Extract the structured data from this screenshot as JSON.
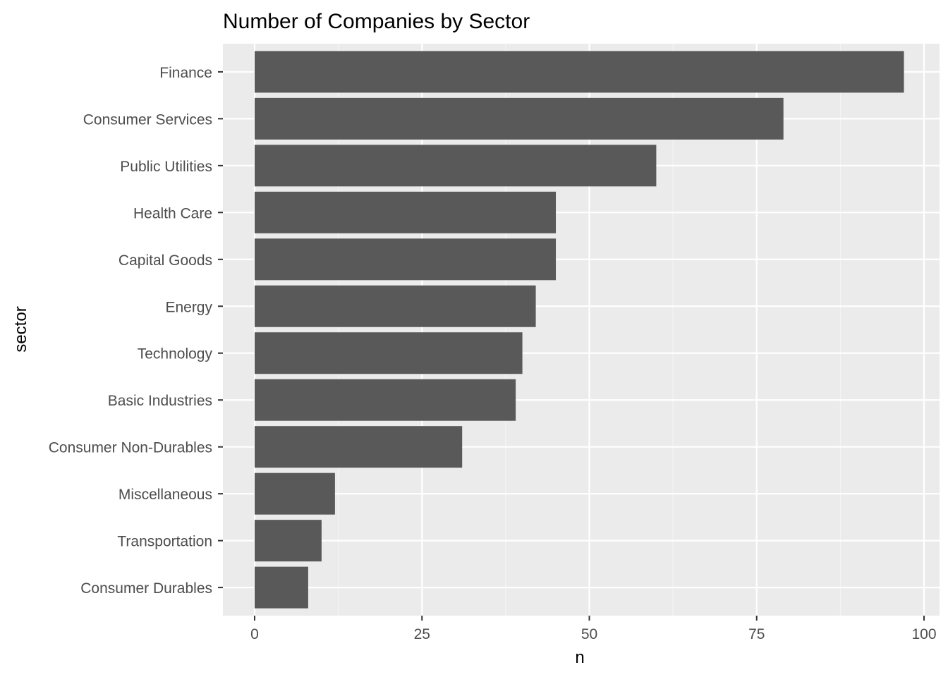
{
  "chart_data": {
    "type": "bar",
    "orientation": "horizontal",
    "title": "Number of Companies by Sector",
    "xlabel": "n",
    "ylabel": "sector",
    "categories": [
      "Finance",
      "Consumer Services",
      "Public Utilities",
      "Health Care",
      "Capital Goods",
      "Energy",
      "Technology",
      "Basic Industries",
      "Consumer Non-Durables",
      "Miscellaneous",
      "Transportation",
      "Consumer Durables"
    ],
    "values": [
      97,
      79,
      60,
      45,
      45,
      42,
      40,
      39,
      31,
      12,
      10,
      8
    ],
    "xlim": [
      0,
      100
    ],
    "xticks": [
      0,
      25,
      50,
      75,
      100
    ],
    "grid": true,
    "colors": {
      "bar": "#595959",
      "panel_background": "#ebebeb",
      "grid_major": "#ffffff",
      "grid_minor": "#f5f5f5",
      "tick_text": "#4d4d4d",
      "tick_mark": "#333333"
    }
  }
}
